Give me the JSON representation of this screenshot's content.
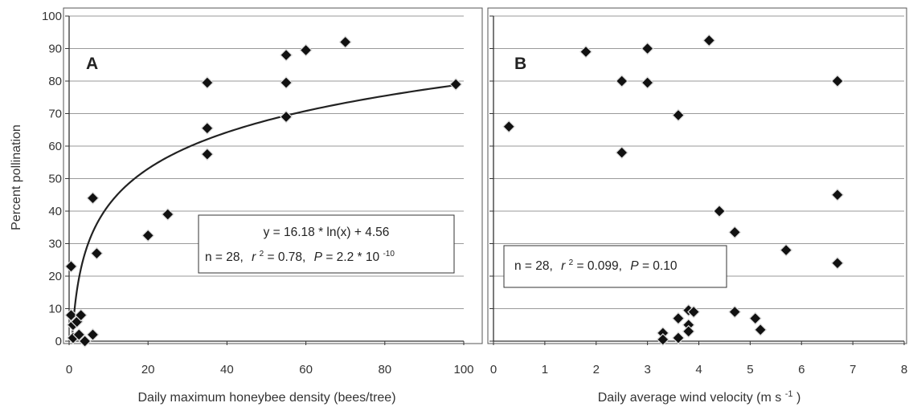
{
  "ylabel": "Percent pollination",
  "chart_data": [
    {
      "type": "scatter",
      "panel": "A",
      "xlabel": "Daily maximum honeybee density (bees/tree)",
      "ylabel": "Percent pollination",
      "xlim": [
        0,
        100
      ],
      "ylim": [
        0,
        100
      ],
      "xticks": [
        0,
        20,
        40,
        60,
        80,
        100
      ],
      "yticks": [
        0,
        10,
        20,
        30,
        40,
        50,
        60,
        70,
        80,
        90,
        100
      ],
      "grid": "horizontal",
      "points": [
        {
          "x": 0.5,
          "y": 23
        },
        {
          "x": 0.5,
          "y": 8
        },
        {
          "x": 1,
          "y": 5
        },
        {
          "x": 1,
          "y": 1
        },
        {
          "x": 2,
          "y": 6
        },
        {
          "x": 2.5,
          "y": 2
        },
        {
          "x": 3,
          "y": 8
        },
        {
          "x": 4,
          "y": 0
        },
        {
          "x": 6,
          "y": 44
        },
        {
          "x": 6,
          "y": 2
        },
        {
          "x": 7,
          "y": 27
        },
        {
          "x": 20,
          "y": 32.5
        },
        {
          "x": 25,
          "y": 39
        },
        {
          "x": 35,
          "y": 79.5
        },
        {
          "x": 35,
          "y": 65.5
        },
        {
          "x": 35,
          "y": 57.5
        },
        {
          "x": 55,
          "y": 88
        },
        {
          "x": 55,
          "y": 79.5
        },
        {
          "x": 55,
          "y": 69
        },
        {
          "x": 60,
          "y": 89.5
        },
        {
          "x": 70,
          "y": 92
        },
        {
          "x": 98,
          "y": 79
        }
      ],
      "fit": {
        "type": "log",
        "a": 16.18,
        "b": 4.56,
        "xmin": 0.75,
        "xmax": 98
      },
      "annotation_line1": "y = 16.18 * ln(x) + 4.56",
      "annotation_line2": {
        "n": "n = 28,",
        "r_symbol": "r",
        "r_exp": "2",
        "r_value": " = 0.78,",
        "p_symbol": "P",
        "p_value": " = 2.2 * 10",
        "p_exp": "-10"
      }
    },
    {
      "type": "scatter",
      "panel": "B",
      "xlabel": "Daily average wind velocity (m s",
      "xlabel_exp": "-1",
      "xlabel_end": ")",
      "xlim": [
        0,
        8
      ],
      "ylim": [
        0,
        100
      ],
      "xticks": [
        0,
        1,
        2,
        3,
        4,
        5,
        6,
        7,
        8
      ],
      "grid": "horizontal",
      "points": [
        {
          "x": 0.3,
          "y": 66
        },
        {
          "x": 1.8,
          "y": 89
        },
        {
          "x": 2.5,
          "y": 80
        },
        {
          "x": 2.5,
          "y": 58
        },
        {
          "x": 3.0,
          "y": 90
        },
        {
          "x": 3.0,
          "y": 79.5
        },
        {
          "x": 3.3,
          "y": 2.5
        },
        {
          "x": 3.3,
          "y": 0.5
        },
        {
          "x": 3.6,
          "y": 69.5
        },
        {
          "x": 3.6,
          "y": 7
        },
        {
          "x": 3.6,
          "y": 1
        },
        {
          "x": 3.8,
          "y": 9.5
        },
        {
          "x": 3.8,
          "y": 5
        },
        {
          "x": 3.8,
          "y": 3
        },
        {
          "x": 3.9,
          "y": 9
        },
        {
          "x": 4.2,
          "y": 92.5
        },
        {
          "x": 4.4,
          "y": 40
        },
        {
          "x": 4.7,
          "y": 33.5
        },
        {
          "x": 4.7,
          "y": 9
        },
        {
          "x": 5.1,
          "y": 7
        },
        {
          "x": 5.2,
          "y": 3.5
        },
        {
          "x": 5.7,
          "y": 28
        },
        {
          "x": 6.7,
          "y": 80
        },
        {
          "x": 6.7,
          "y": 45
        },
        {
          "x": 6.7,
          "y": 24
        }
      ],
      "annotation": {
        "n": "n = 28,",
        "r_symbol": "r",
        "r_exp": "2",
        "r_value": " = 0.099,",
        "p_symbol": "P",
        "p_value": " = 0.10"
      }
    }
  ]
}
